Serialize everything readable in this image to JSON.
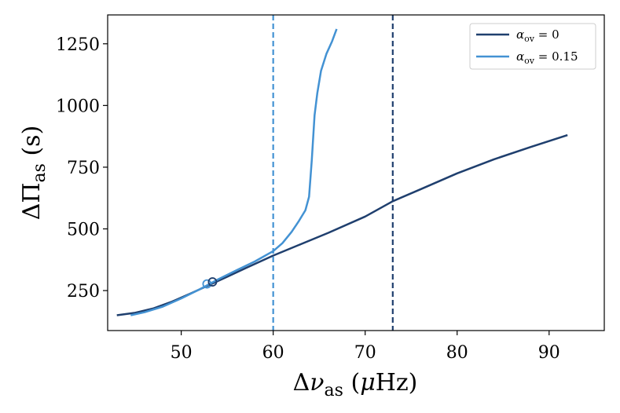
{
  "chart_data": {
    "type": "line",
    "xlabel": "Δν_as  (μHz)",
    "ylabel": "ΔΠ_as  (s)",
    "xlim": [
      42,
      96
    ],
    "ylim": [
      88,
      1367
    ],
    "xticks": [
      50,
      60,
      70,
      80,
      90
    ],
    "yticks": [
      250,
      500,
      750,
      1000,
      1250
    ],
    "legend_position": "top-right",
    "grid": false,
    "series": [
      {
        "name": "α_ov = 0",
        "color": "#1f3f6e",
        "x": [
          43,
          45,
          47,
          49,
          51,
          53,
          55,
          57,
          60,
          63,
          66,
          70,
          73,
          76,
          80,
          84,
          88,
          92
        ],
        "y": [
          150,
          160,
          178,
          205,
          238,
          272,
          306,
          341,
          392,
          438,
          484,
          550,
          612,
          660,
          725,
          782,
          832,
          880
        ]
      },
      {
        "name": "α_ov = 0.15",
        "color": "#4392d3",
        "x": [
          44.5,
          46,
          48,
          50,
          52,
          54,
          56,
          58,
          60,
          61,
          62,
          62.8,
          63.5,
          63.9,
          64.2,
          64.5,
          64.8,
          65.2,
          65.8,
          66.4,
          66.9
        ],
        "y": [
          150,
          162,
          185,
          218,
          255,
          295,
          332,
          368,
          410,
          442,
          488,
          532,
          575,
          630,
          780,
          960,
          1050,
          1140,
          1210,
          1260,
          1310
        ]
      }
    ],
    "vlines": [
      {
        "x": 60.0,
        "color": "#4392d3",
        "style": "dashed"
      },
      {
        "x": 73.0,
        "color": "#1f3f6e",
        "style": "dashed"
      }
    ],
    "markers": [
      {
        "x": 52.8,
        "y": 277,
        "color": "#4392d3"
      },
      {
        "x": 53.4,
        "y": 285,
        "color": "#1f3f6e"
      }
    ]
  }
}
